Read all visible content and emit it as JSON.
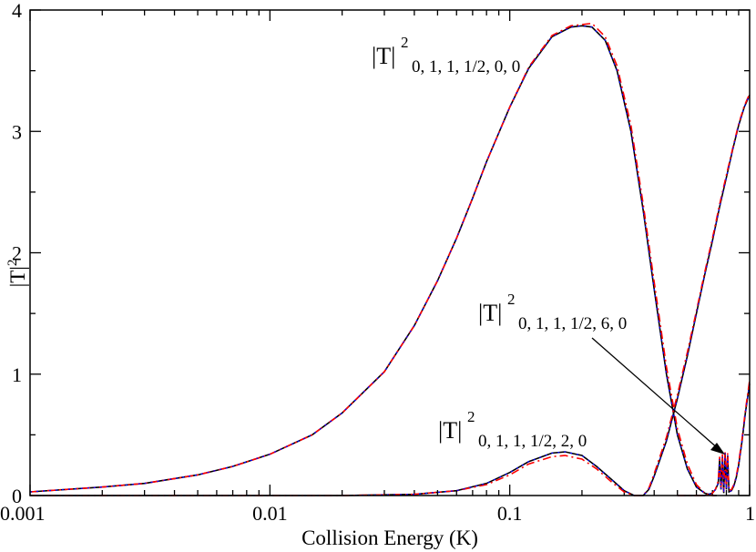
{
  "chart_data": {
    "type": "line",
    "xscale": "log",
    "xlim": [
      0.001,
      1
    ],
    "ylim": [
      0,
      4
    ],
    "xlabel": "Collision Energy (K)",
    "ylabel": "|T|",
    "ylabel_sup": "2",
    "xticks": [
      {
        "value": 0.001,
        "label": "0.001"
      },
      {
        "value": 0.01,
        "label": "0.01"
      },
      {
        "value": 0.1,
        "label": "0.1"
      },
      {
        "value": 1,
        "label": "1"
      }
    ],
    "yticks": [
      {
        "value": 0,
        "label": "0"
      },
      {
        "value": 1,
        "label": "1"
      },
      {
        "value": 2,
        "label": "2"
      },
      {
        "value": 3,
        "label": "3"
      },
      {
        "value": 4,
        "label": "4"
      }
    ],
    "colors": {
      "solid": "#000000",
      "dashed": "#ff0000",
      "dotted": "#0000ff"
    },
    "series": [
      {
        "x": [
          0.001,
          0.002,
          0.003,
          0.005,
          0.007,
          0.01,
          0.015,
          0.02,
          0.03,
          0.04,
          0.05,
          0.06,
          0.07,
          0.08,
          0.1,
          0.12,
          0.15,
          0.18,
          0.2,
          0.22,
          0.25,
          0.28,
          0.32,
          0.36,
          0.4,
          0.45,
          0.5,
          0.55,
          0.6,
          0.65,
          0.7,
          0.73
        ],
        "y": [
          0.03,
          0.07,
          0.1,
          0.17,
          0.24,
          0.34,
          0.5,
          0.68,
          1.02,
          1.4,
          1.77,
          2.12,
          2.45,
          2.75,
          3.2,
          3.52,
          3.78,
          3.86,
          3.87,
          3.86,
          3.75,
          3.5,
          3.0,
          2.35,
          1.7,
          1.0,
          0.5,
          0.22,
          0.07,
          0.02,
          0.0,
          0.0
        ],
        "y_dashed": [
          0.03,
          0.07,
          0.1,
          0.17,
          0.24,
          0.34,
          0.5,
          0.68,
          1.02,
          1.4,
          1.77,
          2.12,
          2.45,
          2.75,
          3.2,
          3.53,
          3.79,
          3.87,
          3.88,
          3.89,
          3.78,
          3.54,
          3.05,
          2.4,
          1.76,
          1.06,
          0.55,
          0.26,
          0.09,
          0.02,
          0.0,
          0.0
        ]
      },
      {
        "x": [
          0.001,
          0.02,
          0.04,
          0.06,
          0.08,
          0.1,
          0.12,
          0.15,
          0.17,
          0.2,
          0.23,
          0.27,
          0.3,
          0.33,
          0.36,
          0.38,
          0.4,
          0.45,
          0.5,
          0.55,
          0.6,
          0.65,
          0.7,
          0.75,
          0.8,
          0.85,
          0.9,
          0.95,
          1.0
        ],
        "y": [
          0.0,
          0.0,
          0.01,
          0.04,
          0.1,
          0.19,
          0.28,
          0.35,
          0.36,
          0.33,
          0.24,
          0.12,
          0.04,
          0.0,
          0.0,
          0.05,
          0.16,
          0.45,
          0.8,
          1.15,
          1.5,
          1.82,
          2.1,
          2.38,
          2.62,
          2.85,
          3.05,
          3.2,
          3.3
        ],
        "y_dashed": [
          0.0,
          0.0,
          0.01,
          0.04,
          0.09,
          0.17,
          0.26,
          0.32,
          0.33,
          0.3,
          0.22,
          0.1,
          0.03,
          0.0,
          0.0,
          0.06,
          0.18,
          0.48,
          0.83,
          1.18,
          1.52,
          1.84,
          2.12,
          2.4,
          2.64,
          2.86,
          3.06,
          3.21,
          3.31
        ]
      },
      {
        "x": [
          0.5,
          0.55,
          0.6,
          0.65,
          0.7,
          0.72,
          0.74,
          0.75,
          0.76,
          0.77,
          0.78,
          0.79,
          0.8,
          0.81,
          0.82,
          0.84,
          0.86,
          0.88,
          0.9,
          0.93,
          0.96,
          1.0
        ],
        "y": [
          0.0,
          0.0,
          0.0,
          0.0,
          0.02,
          0.05,
          0.1,
          0.3,
          0.05,
          0.32,
          0.02,
          0.35,
          0.05,
          0.33,
          0.03,
          0.04,
          0.08,
          0.15,
          0.25,
          0.45,
          0.68,
          0.92
        ],
        "y_dashed": [
          0.0,
          0.0,
          0.0,
          0.0,
          0.02,
          0.05,
          0.12,
          0.32,
          0.06,
          0.34,
          0.03,
          0.37,
          0.06,
          0.35,
          0.04,
          0.05,
          0.09,
          0.16,
          0.27,
          0.47,
          0.7,
          0.95
        ]
      }
    ],
    "annotations": [
      {
        "main": "|T|",
        "sup": "2",
        "sub": "0, 1, 1, 1/2, 0, 0"
      },
      {
        "main": "|T|",
        "sup": "2",
        "sub": "0, 1, 1, 1/2, 6, 0"
      },
      {
        "main": "|T|",
        "sup": "2",
        "sub": "0, 1, 1, 1/2, 2, 0"
      }
    ]
  }
}
